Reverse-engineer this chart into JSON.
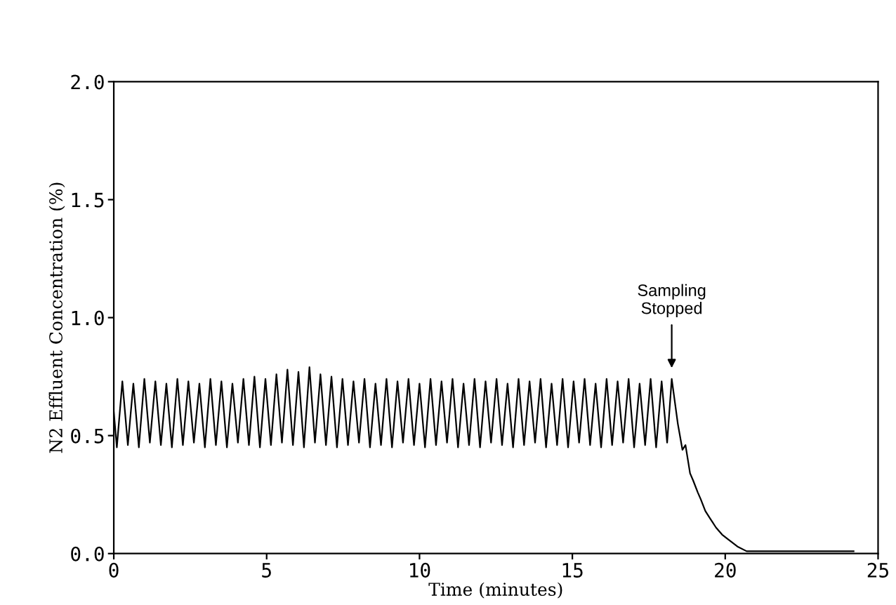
{
  "chart_data": {
    "type": "line",
    "xlabel": "Time (minutes)",
    "ylabel": "N2 Effluent Concentration (%)",
    "xlim": [
      0,
      25
    ],
    "ylim": [
      0,
      2.0
    ],
    "xticks": [
      0,
      5,
      10,
      15,
      20,
      25
    ],
    "yticks": [
      {
        "value": 0,
        "label": "0.0"
      },
      {
        "value": 0.5,
        "label": "0.5"
      },
      {
        "value": 1.0,
        "label": "1.0"
      },
      {
        "value": 1.5,
        "label": "1.5"
      },
      {
        "value": 2.0,
        "label": "2.0"
      }
    ],
    "grid": false,
    "legend": false,
    "marker": "none",
    "line_style": "solid",
    "annotations": [
      {
        "text": "Sampling\nStopped",
        "x": 18.25,
        "y": 0.77
      }
    ],
    "series": [
      {
        "color": "#000000",
        "x": [
          0,
          0.1,
          0.28,
          0.46,
          0.64,
          0.82,
          1.0,
          1.18,
          1.36,
          1.54,
          1.72,
          1.9,
          2.08,
          2.26,
          2.44,
          2.62,
          2.8,
          2.98,
          3.16,
          3.34,
          3.52,
          3.7,
          3.88,
          4.06,
          4.24,
          4.42,
          4.6,
          4.78,
          4.96,
          5.14,
          5.32,
          5.5,
          5.68,
          5.86,
          6.04,
          6.22,
          6.4,
          6.58,
          6.76,
          6.94,
          7.12,
          7.3,
          7.48,
          7.66,
          7.84,
          8.02,
          8.2,
          8.38,
          8.56,
          8.74,
          8.92,
          9.1,
          9.28,
          9.46,
          9.64,
          9.82,
          10.0,
          10.18,
          10.36,
          10.54,
          10.72,
          10.9,
          11.08,
          11.26,
          11.44,
          11.62,
          11.8,
          11.98,
          12.16,
          12.34,
          12.52,
          12.7,
          12.88,
          13.06,
          13.24,
          13.42,
          13.6,
          13.78,
          13.96,
          14.14,
          14.32,
          14.5,
          14.68,
          14.86,
          15.04,
          15.22,
          15.4,
          15.58,
          15.76,
          15.94,
          16.12,
          16.3,
          16.48,
          16.66,
          16.84,
          17.02,
          17.2,
          17.38,
          17.56,
          17.74,
          17.92,
          18.1,
          18.25,
          18.45,
          18.6,
          18.7,
          18.85,
          18.95,
          19.1,
          19.2,
          19.35,
          19.5,
          19.7,
          19.9,
          20.1,
          20.4,
          20.7,
          21.5,
          22,
          23,
          24.2
        ],
        "values": [
          0.6,
          0.45,
          0.73,
          0.46,
          0.72,
          0.45,
          0.74,
          0.47,
          0.73,
          0.46,
          0.72,
          0.45,
          0.74,
          0.46,
          0.73,
          0.47,
          0.72,
          0.45,
          0.74,
          0.46,
          0.73,
          0.45,
          0.72,
          0.47,
          0.74,
          0.46,
          0.75,
          0.45,
          0.74,
          0.46,
          0.76,
          0.47,
          0.78,
          0.46,
          0.77,
          0.45,
          0.79,
          0.47,
          0.76,
          0.46,
          0.75,
          0.45,
          0.74,
          0.46,
          0.73,
          0.47,
          0.74,
          0.45,
          0.72,
          0.46,
          0.74,
          0.45,
          0.73,
          0.47,
          0.74,
          0.46,
          0.72,
          0.45,
          0.74,
          0.46,
          0.73,
          0.47,
          0.74,
          0.45,
          0.72,
          0.46,
          0.74,
          0.45,
          0.73,
          0.47,
          0.74,
          0.46,
          0.72,
          0.45,
          0.74,
          0.46,
          0.73,
          0.47,
          0.74,
          0.45,
          0.72,
          0.46,
          0.74,
          0.45,
          0.73,
          0.47,
          0.74,
          0.46,
          0.72,
          0.45,
          0.74,
          0.46,
          0.73,
          0.47,
          0.74,
          0.45,
          0.72,
          0.46,
          0.74,
          0.45,
          0.73,
          0.47,
          0.74,
          0.55,
          0.44,
          0.46,
          0.34,
          0.31,
          0.26,
          0.23,
          0.18,
          0.15,
          0.11,
          0.08,
          0.06,
          0.03,
          0.01,
          0.01,
          0.01,
          0.01,
          0.01
        ]
      }
    ]
  }
}
